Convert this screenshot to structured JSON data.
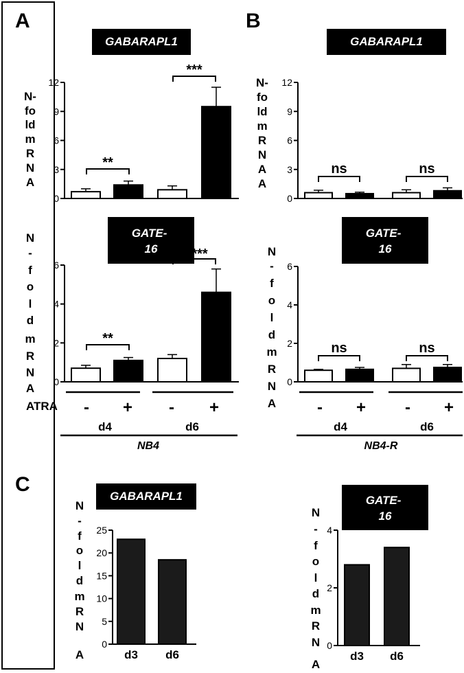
{
  "panels": {
    "A": "A",
    "B": "B",
    "C": "C"
  },
  "treatment_label": "ATRA",
  "minus_sign": "-",
  "plus_sign": "+",
  "chart_data": [
    {
      "id": "A-top",
      "type": "bar",
      "title": "GABARAPL1",
      "ylabel": "N-fold mRNA",
      "ylim": [
        0,
        12
      ],
      "yticks": [
        "0",
        "3",
        "6",
        "9",
        "12"
      ],
      "categories": [
        "d4 -",
        "d4 +",
        "d6 -",
        "d6 +"
      ],
      "values": [
        0.7,
        1.4,
        0.9,
        9.5
      ],
      "errors": [
        0.3,
        0.4,
        0.4,
        2.0
      ],
      "fills": [
        "white",
        "black",
        "white",
        "black"
      ],
      "significance": [
        "**",
        "***"
      ]
    },
    {
      "id": "A-bottom",
      "type": "bar",
      "title": "GATE-16",
      "ylabel": "N-fold mRNA",
      "ylim": [
        0,
        6
      ],
      "yticks": [
        "0",
        "2",
        "4",
        "6"
      ],
      "categories": [
        "d4 -",
        "d4 +",
        "d6 -",
        "d6 +"
      ],
      "values": [
        0.7,
        1.1,
        1.2,
        4.6
      ],
      "errors": [
        0.15,
        0.15,
        0.2,
        1.2
      ],
      "fills": [
        "white",
        "black",
        "white",
        "black"
      ],
      "significance": [
        "**",
        "***"
      ],
      "group": "NB4",
      "days": [
        "d4",
        "d6"
      ]
    },
    {
      "id": "B-top",
      "type": "bar",
      "title": "GABARAPL1",
      "ylabel": "N-fold mRNA",
      "ylim": [
        0,
        12
      ],
      "yticks": [
        "0",
        "3",
        "6",
        "9",
        "12"
      ],
      "categories": [
        "d4 -",
        "d4 +",
        "d6 -",
        "d6 +"
      ],
      "values": [
        0.6,
        0.5,
        0.6,
        0.8
      ],
      "errors": [
        0.25,
        0.15,
        0.3,
        0.3
      ],
      "fills": [
        "white",
        "black",
        "white",
        "black"
      ],
      "significance": [
        "ns",
        "ns"
      ]
    },
    {
      "id": "B-bottom",
      "type": "bar",
      "title": "GATE-16",
      "ylabel": "N-fold mRNA",
      "ylim": [
        0,
        6
      ],
      "yticks": [
        "0",
        "2",
        "4",
        "6"
      ],
      "categories": [
        "d4 -",
        "d4 +",
        "d6 -",
        "d6 +"
      ],
      "values": [
        0.6,
        0.65,
        0.7,
        0.75
      ],
      "errors": [
        0.05,
        0.1,
        0.2,
        0.15
      ],
      "fills": [
        "white",
        "black",
        "white",
        "black"
      ],
      "significance": [
        "ns",
        "ns"
      ],
      "group": "NB4-R",
      "days": [
        "d4",
        "d6"
      ]
    },
    {
      "id": "C-left",
      "type": "bar",
      "title": "GABARAPL1",
      "ylabel": "N-fold mRNA",
      "ylim": [
        0,
        25
      ],
      "yticks": [
        "0",
        "5",
        "10",
        "15",
        "20",
        "25"
      ],
      "categories": [
        "d3",
        "d6"
      ],
      "values": [
        23,
        18.5
      ],
      "fills": [
        "dark",
        "dark"
      ]
    },
    {
      "id": "C-right",
      "type": "bar",
      "title": "GATE-16",
      "ylabel": "N-fold mRNA",
      "ylim": [
        0,
        4
      ],
      "yticks": [
        "0",
        "2",
        "4"
      ],
      "categories": [
        "d3",
        "d6"
      ],
      "values": [
        2.8,
        3.4
      ],
      "fills": [
        "dark",
        "dark"
      ]
    }
  ]
}
